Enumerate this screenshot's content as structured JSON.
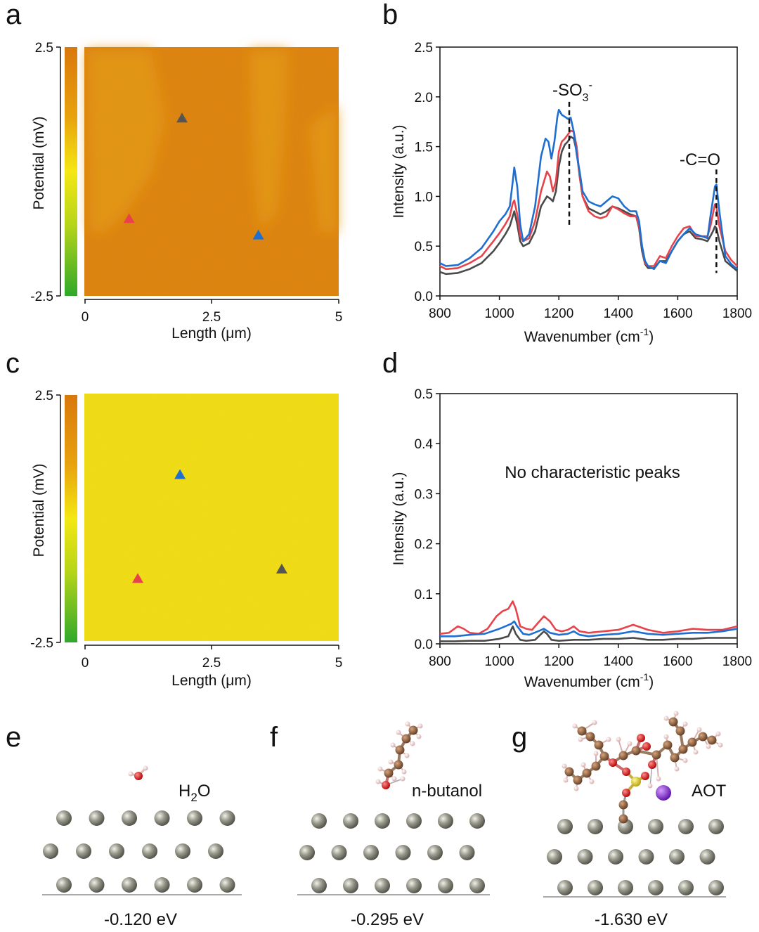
{
  "panel_labels": {
    "a": "a",
    "b": "b",
    "c": "c",
    "d": "d",
    "e": "e",
    "f": "f",
    "g": "g"
  },
  "map_a": {
    "colorbar_max": "2.5",
    "colorbar_min": "-2.5",
    "ylabel": "Potential (mV)",
    "xlabel": "Length (μm)",
    "xticks": [
      "0",
      "2.5",
      "5"
    ],
    "markers": [
      {
        "color": "#555555",
        "x_um": 1.92,
        "y_um": 3.57
      },
      {
        "color": "#e8434a",
        "x_um": 0.88,
        "y_um": 1.55
      },
      {
        "color": "#1f6fd1",
        "x_um": 3.42,
        "y_um": 1.22
      }
    ],
    "colors": {
      "base": "#df7f0a",
      "patch": "#e4920e"
    }
  },
  "map_c": {
    "colorbar_max": "2.5",
    "colorbar_min": "-2.5",
    "ylabel": "Potential (mV)",
    "xlabel": "Length (μm)",
    "xticks": [
      "0",
      "2.5",
      "5"
    ],
    "markers": [
      {
        "color": "#1f6fd1",
        "x_um": 1.88,
        "y_um": 3.36
      },
      {
        "color": "#e8434a",
        "x_um": 1.05,
        "y_um": 1.26
      },
      {
        "color": "#555555",
        "x_um": 3.88,
        "y_um": 1.45
      }
    ],
    "colors": {
      "base": "#f2de12"
    }
  },
  "chart_data": [
    {
      "id": "b",
      "type": "line",
      "xlabel": "Wavenumber (cm",
      "xlabel_sup": "-1",
      "xlabel_end": ")",
      "ylabel": "Intensity (a.u.)",
      "xlim": [
        800,
        1800
      ],
      "ylim": [
        0,
        2.5
      ],
      "xticks": [
        "800",
        "1000",
        "1200",
        "1400",
        "1600",
        "1800"
      ],
      "yticks": [
        "0.0",
        "0.5",
        "1.0",
        "1.5",
        "2.0",
        "2.5"
      ],
      "annotations": [
        {
          "text": "-SO",
          "sub": "3",
          "sup": "-",
          "x": 1235
        },
        {
          "text": "-C=O",
          "x": 1730
        }
      ],
      "series": [
        {
          "name": "blue",
          "color": "#1f6fd1",
          "x": [
            800,
            820,
            860,
            900,
            940,
            980,
            1000,
            1020,
            1035,
            1045,
            1050,
            1060,
            1070,
            1080,
            1100,
            1120,
            1140,
            1155,
            1165,
            1175,
            1185,
            1195,
            1200,
            1210,
            1220,
            1230,
            1240,
            1250,
            1260,
            1270,
            1280,
            1300,
            1320,
            1340,
            1360,
            1380,
            1400,
            1420,
            1440,
            1460,
            1470,
            1480,
            1490,
            1500,
            1520,
            1540,
            1560,
            1580,
            1600,
            1620,
            1640,
            1660,
            1680,
            1700,
            1710,
            1720,
            1725,
            1730,
            1740,
            1760,
            1780,
            1800
          ],
          "y": [
            0.33,
            0.3,
            0.31,
            0.38,
            0.48,
            0.65,
            0.75,
            0.82,
            0.9,
            1.15,
            1.29,
            1.1,
            0.72,
            0.55,
            0.62,
            0.9,
            1.4,
            1.58,
            1.55,
            1.38,
            1.55,
            1.8,
            1.87,
            1.82,
            1.8,
            1.78,
            1.79,
            1.65,
            1.42,
            1.25,
            1.05,
            0.95,
            0.92,
            0.9,
            0.95,
            1.0,
            0.98,
            0.9,
            0.85,
            0.85,
            0.75,
            0.5,
            0.35,
            0.3,
            0.27,
            0.35,
            0.33,
            0.45,
            0.55,
            0.62,
            0.68,
            0.62,
            0.6,
            0.58,
            0.8,
            1.0,
            1.1,
            1.12,
            0.85,
            0.4,
            0.32,
            0.27
          ]
        },
        {
          "name": "red",
          "color": "#e8434a",
          "x": [
            800,
            820,
            860,
            900,
            940,
            980,
            1000,
            1020,
            1035,
            1045,
            1050,
            1060,
            1070,
            1080,
            1100,
            1120,
            1140,
            1160,
            1170,
            1180,
            1190,
            1200,
            1210,
            1220,
            1230,
            1240,
            1250,
            1260,
            1270,
            1280,
            1300,
            1320,
            1340,
            1360,
            1380,
            1400,
            1420,
            1440,
            1460,
            1470,
            1480,
            1490,
            1500,
            1520,
            1540,
            1560,
            1580,
            1600,
            1620,
            1640,
            1660,
            1680,
            1700,
            1710,
            1720,
            1725,
            1730,
            1740,
            1760,
            1780,
            1800
          ],
          "y": [
            0.3,
            0.27,
            0.28,
            0.33,
            0.4,
            0.55,
            0.63,
            0.72,
            0.8,
            0.93,
            0.96,
            0.82,
            0.6,
            0.55,
            0.58,
            0.75,
            1.05,
            1.25,
            1.2,
            1.05,
            1.15,
            1.45,
            1.55,
            1.58,
            1.62,
            1.66,
            1.65,
            1.5,
            1.2,
            1.0,
            0.85,
            0.8,
            0.78,
            0.8,
            0.9,
            0.87,
            0.83,
            0.8,
            0.8,
            0.7,
            0.5,
            0.33,
            0.3,
            0.3,
            0.4,
            0.38,
            0.5,
            0.6,
            0.68,
            0.7,
            0.6,
            0.6,
            0.6,
            0.7,
            0.85,
            0.92,
            0.9,
            0.7,
            0.45,
            0.36,
            0.3
          ]
        },
        {
          "name": "gray",
          "color": "#4a4a4a",
          "x": [
            800,
            820,
            860,
            900,
            940,
            980,
            1000,
            1020,
            1035,
            1045,
            1050,
            1060,
            1070,
            1080,
            1100,
            1120,
            1140,
            1160,
            1170,
            1180,
            1190,
            1200,
            1210,
            1220,
            1230,
            1240,
            1250,
            1260,
            1270,
            1280,
            1300,
            1320,
            1340,
            1360,
            1380,
            1400,
            1420,
            1440,
            1460,
            1470,
            1480,
            1490,
            1500,
            1520,
            1540,
            1560,
            1580,
            1600,
            1620,
            1640,
            1660,
            1680,
            1700,
            1710,
            1720,
            1725,
            1730,
            1740,
            1760,
            1780,
            1800
          ],
          "y": [
            0.24,
            0.22,
            0.23,
            0.27,
            0.33,
            0.45,
            0.53,
            0.62,
            0.7,
            0.8,
            0.85,
            0.72,
            0.55,
            0.5,
            0.53,
            0.65,
            0.9,
            1.0,
            0.98,
            0.95,
            1.05,
            1.3,
            1.45,
            1.52,
            1.55,
            1.6,
            1.58,
            1.45,
            1.2,
            1.0,
            0.88,
            0.85,
            0.82,
            0.85,
            0.9,
            0.88,
            0.85,
            0.82,
            0.8,
            0.68,
            0.45,
            0.32,
            0.28,
            0.28,
            0.35,
            0.35,
            0.45,
            0.55,
            0.62,
            0.65,
            0.58,
            0.57,
            0.55,
            0.6,
            0.66,
            0.7,
            0.68,
            0.55,
            0.35,
            0.3,
            0.25
          ]
        }
      ]
    },
    {
      "id": "d",
      "type": "line",
      "xlabel": "Wavenumber (cm",
      "xlabel_sup": "-1",
      "xlabel_end": ")",
      "ylabel": "Intensity (a.u.)",
      "xlim": [
        800,
        1800
      ],
      "ylim": [
        0,
        0.5
      ],
      "xticks": [
        "800",
        "1000",
        "1200",
        "1400",
        "1600",
        "1800"
      ],
      "yticks": [
        "0.0",
        "0.1",
        "0.2",
        "0.3",
        "0.4",
        "0.5"
      ],
      "annotations": [
        {
          "text": "No characteristic peaks"
        }
      ],
      "series": [
        {
          "name": "red",
          "color": "#e8434a",
          "x": [
            800,
            830,
            860,
            880,
            900,
            930,
            960,
            990,
            1010,
            1030,
            1045,
            1055,
            1070,
            1090,
            1110,
            1130,
            1150,
            1170,
            1190,
            1210,
            1230,
            1250,
            1270,
            1300,
            1350,
            1400,
            1450,
            1500,
            1550,
            1600,
            1650,
            1700,
            1750,
            1800
          ],
          "y": [
            0.02,
            0.022,
            0.035,
            0.03,
            0.022,
            0.02,
            0.03,
            0.055,
            0.065,
            0.07,
            0.085,
            0.07,
            0.035,
            0.03,
            0.028,
            0.042,
            0.055,
            0.045,
            0.028,
            0.025,
            0.028,
            0.035,
            0.025,
            0.022,
            0.025,
            0.028,
            0.038,
            0.028,
            0.022,
            0.025,
            0.03,
            0.028,
            0.028,
            0.035
          ]
        },
        {
          "name": "blue",
          "color": "#1f6fd1",
          "x": [
            800,
            850,
            900,
            950,
            1000,
            1020,
            1040,
            1050,
            1060,
            1080,
            1100,
            1130,
            1150,
            1170,
            1200,
            1230,
            1250,
            1270,
            1300,
            1350,
            1400,
            1450,
            1500,
            1550,
            1600,
            1650,
            1700,
            1750,
            1800
          ],
          "y": [
            0.015,
            0.015,
            0.018,
            0.02,
            0.03,
            0.035,
            0.04,
            0.045,
            0.035,
            0.02,
            0.018,
            0.025,
            0.03,
            0.022,
            0.018,
            0.02,
            0.025,
            0.018,
            0.015,
            0.018,
            0.02,
            0.025,
            0.02,
            0.018,
            0.02,
            0.022,
            0.022,
            0.025,
            0.03
          ]
        },
        {
          "name": "gray",
          "color": "#4a4a4a",
          "x": [
            800,
            850,
            900,
            950,
            1000,
            1030,
            1045,
            1055,
            1070,
            1090,
            1120,
            1150,
            1160,
            1175,
            1200,
            1250,
            1300,
            1350,
            1400,
            1450,
            1500,
            1550,
            1600,
            1650,
            1700,
            1750,
            1800
          ],
          "y": [
            0.005,
            0.005,
            0.006,
            0.006,
            0.01,
            0.015,
            0.035,
            0.02,
            0.008,
            0.006,
            0.008,
            0.025,
            0.02,
            0.008,
            0.006,
            0.008,
            0.008,
            0.01,
            0.01,
            0.012,
            0.008,
            0.008,
            0.01,
            0.01,
            0.012,
            0.012,
            0.012
          ]
        }
      ]
    }
  ],
  "molecule_e": {
    "label": "H",
    "label_sub": "2",
    "label_end": "O",
    "energy": "-0.120 eV"
  },
  "molecule_f": {
    "label": "n-butanol",
    "energy": "-0.295 eV"
  },
  "molecule_g": {
    "label": "AOT",
    "energy": "-1.630 eV"
  },
  "atom_colors": {
    "metal": "#8c8c80",
    "carbon": "#8a5a3a",
    "oxygen": "#d81818",
    "hydrogen": "#f0c8c8",
    "sulfur": "#e8d21a",
    "sodium": "#8a2bd8"
  }
}
